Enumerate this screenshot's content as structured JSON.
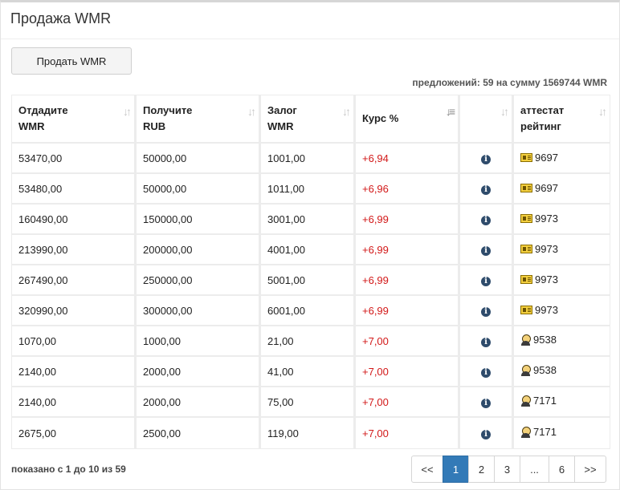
{
  "panel": {
    "title": "Продажа WMR"
  },
  "actions": {
    "sell_label": "Продать WMR"
  },
  "summary": "предложений: 59 на сумму 1569744 WMR",
  "table": {
    "headers": {
      "give": [
        "Отдадите",
        "WMR"
      ],
      "receive": [
        "Получите",
        "RUB"
      ],
      "deposit": [
        "Залог",
        "WMR"
      ],
      "rate": [
        "Курс %"
      ],
      "info": [],
      "attest": [
        "аттестат",
        "рейтинг"
      ]
    },
    "rows": [
      {
        "give": "53470,00",
        "receive": "50000,00",
        "deposit": "1001,00",
        "rate": "+6,94",
        "attest_icon": "certificate-icon",
        "rating": "9697"
      },
      {
        "give": "53480,00",
        "receive": "50000,00",
        "deposit": "1011,00",
        "rate": "+6,96",
        "attest_icon": "certificate-icon",
        "rating": "9697"
      },
      {
        "give": "160490,00",
        "receive": "150000,00",
        "deposit": "3001,00",
        "rate": "+6,99",
        "attest_icon": "certificate-icon",
        "rating": "9973"
      },
      {
        "give": "213990,00",
        "receive": "200000,00",
        "deposit": "4001,00",
        "rate": "+6,99",
        "attest_icon": "certificate-icon",
        "rating": "9973"
      },
      {
        "give": "267490,00",
        "receive": "250000,00",
        "deposit": "5001,00",
        "rate": "+6,99",
        "attest_icon": "certificate-icon",
        "rating": "9973"
      },
      {
        "give": "320990,00",
        "receive": "300000,00",
        "deposit": "6001,00",
        "rate": "+6,99",
        "attest_icon": "certificate-icon",
        "rating": "9973"
      },
      {
        "give": "1070,00",
        "receive": "1000,00",
        "deposit": "21,00",
        "rate": "+7,00",
        "attest_icon": "person-icon",
        "rating": "9538"
      },
      {
        "give": "2140,00",
        "receive": "2000,00",
        "deposit": "41,00",
        "rate": "+7,00",
        "attest_icon": "person-icon",
        "rating": "9538"
      },
      {
        "give": "2140,00",
        "receive": "2000,00",
        "deposit": "75,00",
        "rate": "+7,00",
        "attest_icon": "person-icon",
        "rating": "7171"
      },
      {
        "give": "2675,00",
        "receive": "2500,00",
        "deposit": "119,00",
        "rate": "+7,00",
        "attest_icon": "person-icon",
        "rating": "7171"
      }
    ]
  },
  "footer": {
    "showing": "показано с 1 до 10 из 59"
  },
  "pagination": {
    "items": [
      {
        "label": "<<",
        "active": false
      },
      {
        "label": "1",
        "active": true
      },
      {
        "label": "2",
        "active": false
      },
      {
        "label": "3",
        "active": false
      },
      {
        "label": "...",
        "active": false
      },
      {
        "label": "6",
        "active": false
      },
      {
        "label": ">>",
        "active": false
      }
    ]
  },
  "colors": {
    "rate": "#d21818",
    "accent": "#337ab7",
    "info_icon": "#2e4b6b"
  },
  "icons": {
    "sort": "sort-icon",
    "info": "info-icon"
  }
}
